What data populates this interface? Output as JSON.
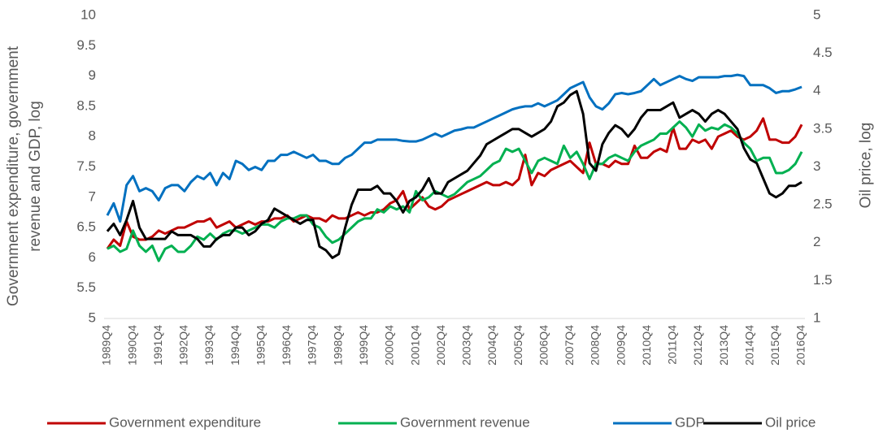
{
  "chart_data": {
    "type": "line",
    "y_label": "Government expenditure, government revenue and GDP, log",
    "y2_label": "Oil price, log",
    "categories": [
      "1989Q4",
      null,
      null,
      null,
      "1990Q4",
      null,
      null,
      null,
      "1991Q4",
      null,
      null,
      null,
      "1992Q4",
      null,
      null,
      null,
      "1993Q4",
      null,
      null,
      null,
      "1994Q4",
      null,
      null,
      null,
      "1995Q4",
      null,
      null,
      null,
      "1996Q4",
      null,
      null,
      null,
      "1997Q4",
      null,
      null,
      null,
      "1998Q4",
      null,
      null,
      null,
      "1999Q4",
      null,
      null,
      null,
      "2000Q4",
      null,
      null,
      null,
      "2001Q4",
      null,
      null,
      null,
      "2002Q4",
      null,
      null,
      null,
      "2003Q4",
      null,
      null,
      null,
      "2004Q4",
      null,
      null,
      null,
      "2005Q4",
      null,
      null,
      null,
      "2006Q4",
      null,
      null,
      null,
      "2007Q4",
      null,
      null,
      null,
      "2008Q4",
      null,
      null,
      null,
      "2009Q4",
      null,
      null,
      null,
      "2010Q4",
      null,
      null,
      null,
      "2011Q4",
      null,
      null,
      null,
      "2012Q4",
      null,
      null,
      null,
      "2013Q4",
      null,
      null,
      null,
      "2014Q4",
      null,
      null,
      null,
      "2015Q4",
      null,
      null,
      null,
      "2016Q4"
    ],
    "series": [
      {
        "name": "Government expenditure",
        "color": "#c00000",
        "values": [
          6.15,
          6.3,
          6.2,
          6.6,
          6.35,
          6.3,
          6.3,
          6.35,
          6.45,
          6.4,
          6.45,
          6.5,
          6.5,
          6.55,
          6.6,
          6.6,
          6.65,
          6.5,
          6.55,
          6.6,
          6.5,
          6.55,
          6.6,
          6.55,
          6.6,
          6.6,
          6.65,
          6.65,
          6.7,
          6.6,
          6.65,
          6.7,
          6.65,
          6.65,
          6.6,
          6.7,
          6.65,
          6.65,
          6.7,
          6.75,
          6.7,
          6.75,
          6.75,
          6.8,
          6.9,
          6.95,
          7.1,
          6.8,
          6.9,
          7.0,
          6.85,
          6.8,
          6.85,
          6.95,
          7.0,
          7.05,
          7.1,
          7.15,
          7.2,
          7.25,
          7.2,
          7.2,
          7.25,
          7.2,
          7.3,
          7.7,
          7.2,
          7.4,
          7.35,
          7.45,
          7.5,
          7.55,
          7.6,
          7.5,
          7.4,
          7.9,
          7.55,
          7.55,
          7.5,
          7.6,
          7.55,
          7.55,
          7.85,
          7.65,
          7.65,
          7.75,
          7.8,
          7.75,
          8.15,
          7.8,
          7.8,
          7.95,
          7.9,
          7.95,
          7.8,
          8.0,
          8.05,
          8.1,
          8.0,
          7.95,
          8.0,
          8.1,
          8.3,
          7.95,
          7.95,
          7.9,
          7.9,
          8.0,
          8.2
        ]
      },
      {
        "name": "Government revenue",
        "color": "#00b050",
        "values": [
          6.15,
          6.2,
          6.1,
          6.15,
          6.45,
          6.2,
          6.1,
          6.2,
          5.95,
          6.15,
          6.2,
          6.1,
          6.1,
          6.2,
          6.35,
          6.3,
          6.4,
          6.3,
          6.4,
          6.45,
          6.45,
          6.4,
          6.45,
          6.5,
          6.55,
          6.55,
          6.5,
          6.6,
          6.65,
          6.65,
          6.7,
          6.7,
          6.55,
          6.5,
          6.35,
          6.25,
          6.3,
          6.4,
          6.5,
          6.6,
          6.65,
          6.65,
          6.8,
          6.75,
          6.85,
          6.8,
          6.85,
          6.75,
          7.1,
          6.95,
          7.0,
          7.1,
          7.05,
          7.0,
          7.05,
          7.15,
          7.25,
          7.3,
          7.35,
          7.45,
          7.55,
          7.6,
          7.8,
          7.75,
          7.8,
          7.6,
          7.4,
          7.6,
          7.65,
          7.6,
          7.55,
          7.85,
          7.65,
          7.75,
          7.55,
          7.3,
          7.55,
          7.55,
          7.65,
          7.7,
          7.65,
          7.6,
          7.75,
          7.85,
          7.9,
          7.95,
          8.05,
          8.05,
          8.15,
          8.25,
          8.15,
          8.0,
          8.2,
          8.1,
          8.15,
          8.12,
          8.2,
          8.15,
          8.05,
          7.9,
          7.8,
          7.6,
          7.65,
          7.65,
          7.4,
          7.4,
          7.45,
          7.55,
          7.75
        ]
      },
      {
        "name": "GDP",
        "color": "#0070c0",
        "values": [
          6.7,
          6.9,
          6.6,
          7.2,
          7.35,
          7.1,
          7.15,
          7.1,
          6.95,
          7.15,
          7.2,
          7.2,
          7.1,
          7.25,
          7.35,
          7.3,
          7.4,
          7.2,
          7.4,
          7.3,
          7.6,
          7.55,
          7.45,
          7.5,
          7.45,
          7.6,
          7.6,
          7.7,
          7.7,
          7.75,
          7.7,
          7.65,
          7.7,
          7.6,
          7.6,
          7.55,
          7.55,
          7.65,
          7.7,
          7.8,
          7.9,
          7.9,
          7.95,
          7.95,
          7.95,
          7.95,
          7.93,
          7.92,
          7.92,
          7.95,
          8.0,
          8.05,
          8.0,
          8.05,
          8.1,
          8.12,
          8.15,
          8.15,
          8.2,
          8.25,
          8.3,
          8.35,
          8.4,
          8.45,
          8.48,
          8.5,
          8.5,
          8.55,
          8.5,
          8.55,
          8.6,
          8.7,
          8.8,
          8.85,
          8.9,
          8.65,
          8.5,
          8.45,
          8.55,
          8.7,
          8.72,
          8.7,
          8.72,
          8.75,
          8.85,
          8.95,
          8.85,
          8.9,
          8.95,
          9.0,
          8.95,
          8.92,
          8.98,
          8.98,
          8.98,
          8.98,
          9.0,
          9.0,
          9.02,
          9.0,
          8.85,
          8.85,
          8.85,
          8.8,
          8.72,
          8.75,
          8.75,
          8.78,
          8.82
        ]
      },
      {
        "name": "Oil price",
        "color": "#000000",
        "axis": "y2",
        "values": [
          2.15,
          2.25,
          2.1,
          2.3,
          2.55,
          2.2,
          2.05,
          2.05,
          2.05,
          2.05,
          2.15,
          2.1,
          2.1,
          2.1,
          2.05,
          1.95,
          1.95,
          2.05,
          2.1,
          2.1,
          2.2,
          2.2,
          2.1,
          2.15,
          2.25,
          2.3,
          2.45,
          2.4,
          2.35,
          2.3,
          2.25,
          2.3,
          2.3,
          1.95,
          1.9,
          1.8,
          1.85,
          2.2,
          2.5,
          2.7,
          2.7,
          2.7,
          2.75,
          2.65,
          2.65,
          2.55,
          2.4,
          2.55,
          2.6,
          2.7,
          2.85,
          2.65,
          2.65,
          2.8,
          2.85,
          2.9,
          2.95,
          3.05,
          3.15,
          3.3,
          3.35,
          3.4,
          3.45,
          3.5,
          3.5,
          3.45,
          3.4,
          3.45,
          3.5,
          3.6,
          3.8,
          3.85,
          3.95,
          4.0,
          3.7,
          3.05,
          2.95,
          3.3,
          3.45,
          3.55,
          3.5,
          3.4,
          3.5,
          3.65,
          3.75,
          3.75,
          3.75,
          3.8,
          3.85,
          3.65,
          3.7,
          3.75,
          3.7,
          3.6,
          3.7,
          3.75,
          3.7,
          3.6,
          3.5,
          3.25,
          3.1,
          3.05,
          2.85,
          2.65,
          2.6,
          2.65,
          2.75,
          2.75,
          2.8
        ]
      }
    ],
    "ylim": [
      5,
      10
    ],
    "yticks": [
      5,
      5.5,
      6,
      6.5,
      7,
      7.5,
      8,
      8.5,
      9,
      9.5,
      10
    ],
    "y2lim": [
      1,
      5
    ],
    "y2ticks": [
      1,
      1.5,
      2,
      2.5,
      3,
      3.5,
      4,
      4.5,
      5
    ],
    "legend": "bottom"
  }
}
